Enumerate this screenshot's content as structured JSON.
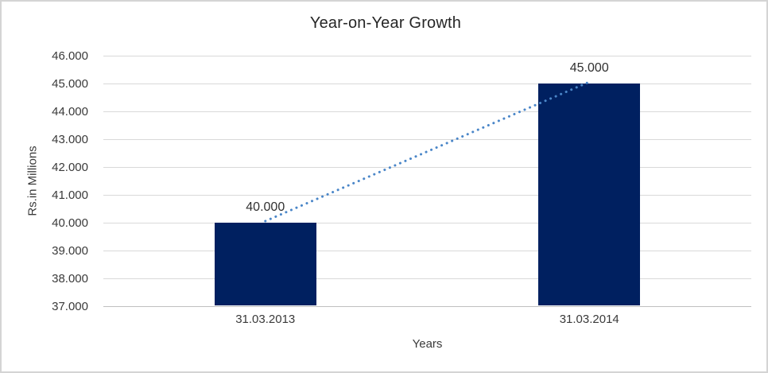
{
  "chart_data": {
    "type": "bar",
    "title": "Year-on-Year Growth",
    "xlabel": "Years",
    "ylabel": "Rs.in Millions",
    "categories": [
      "31.03.2013",
      "31.03.2014"
    ],
    "values": [
      40000,
      45000
    ],
    "data_labels": [
      "40.000",
      "45.000"
    ],
    "ylim": [
      37000,
      46000
    ],
    "ytick_step": 1000,
    "ytick_labels": [
      "37.000",
      "38.000",
      "39.000",
      "40.000",
      "41.000",
      "42.000",
      "43.000",
      "44.000",
      "45.000",
      "46.000"
    ],
    "grid": true,
    "legend": "none",
    "bar_color": "#002060",
    "trendline": {
      "style": "dotted",
      "color": "#4a86c8"
    },
    "gridline_color": "#d9d9d9",
    "text_color": "#3a3a3a"
  }
}
